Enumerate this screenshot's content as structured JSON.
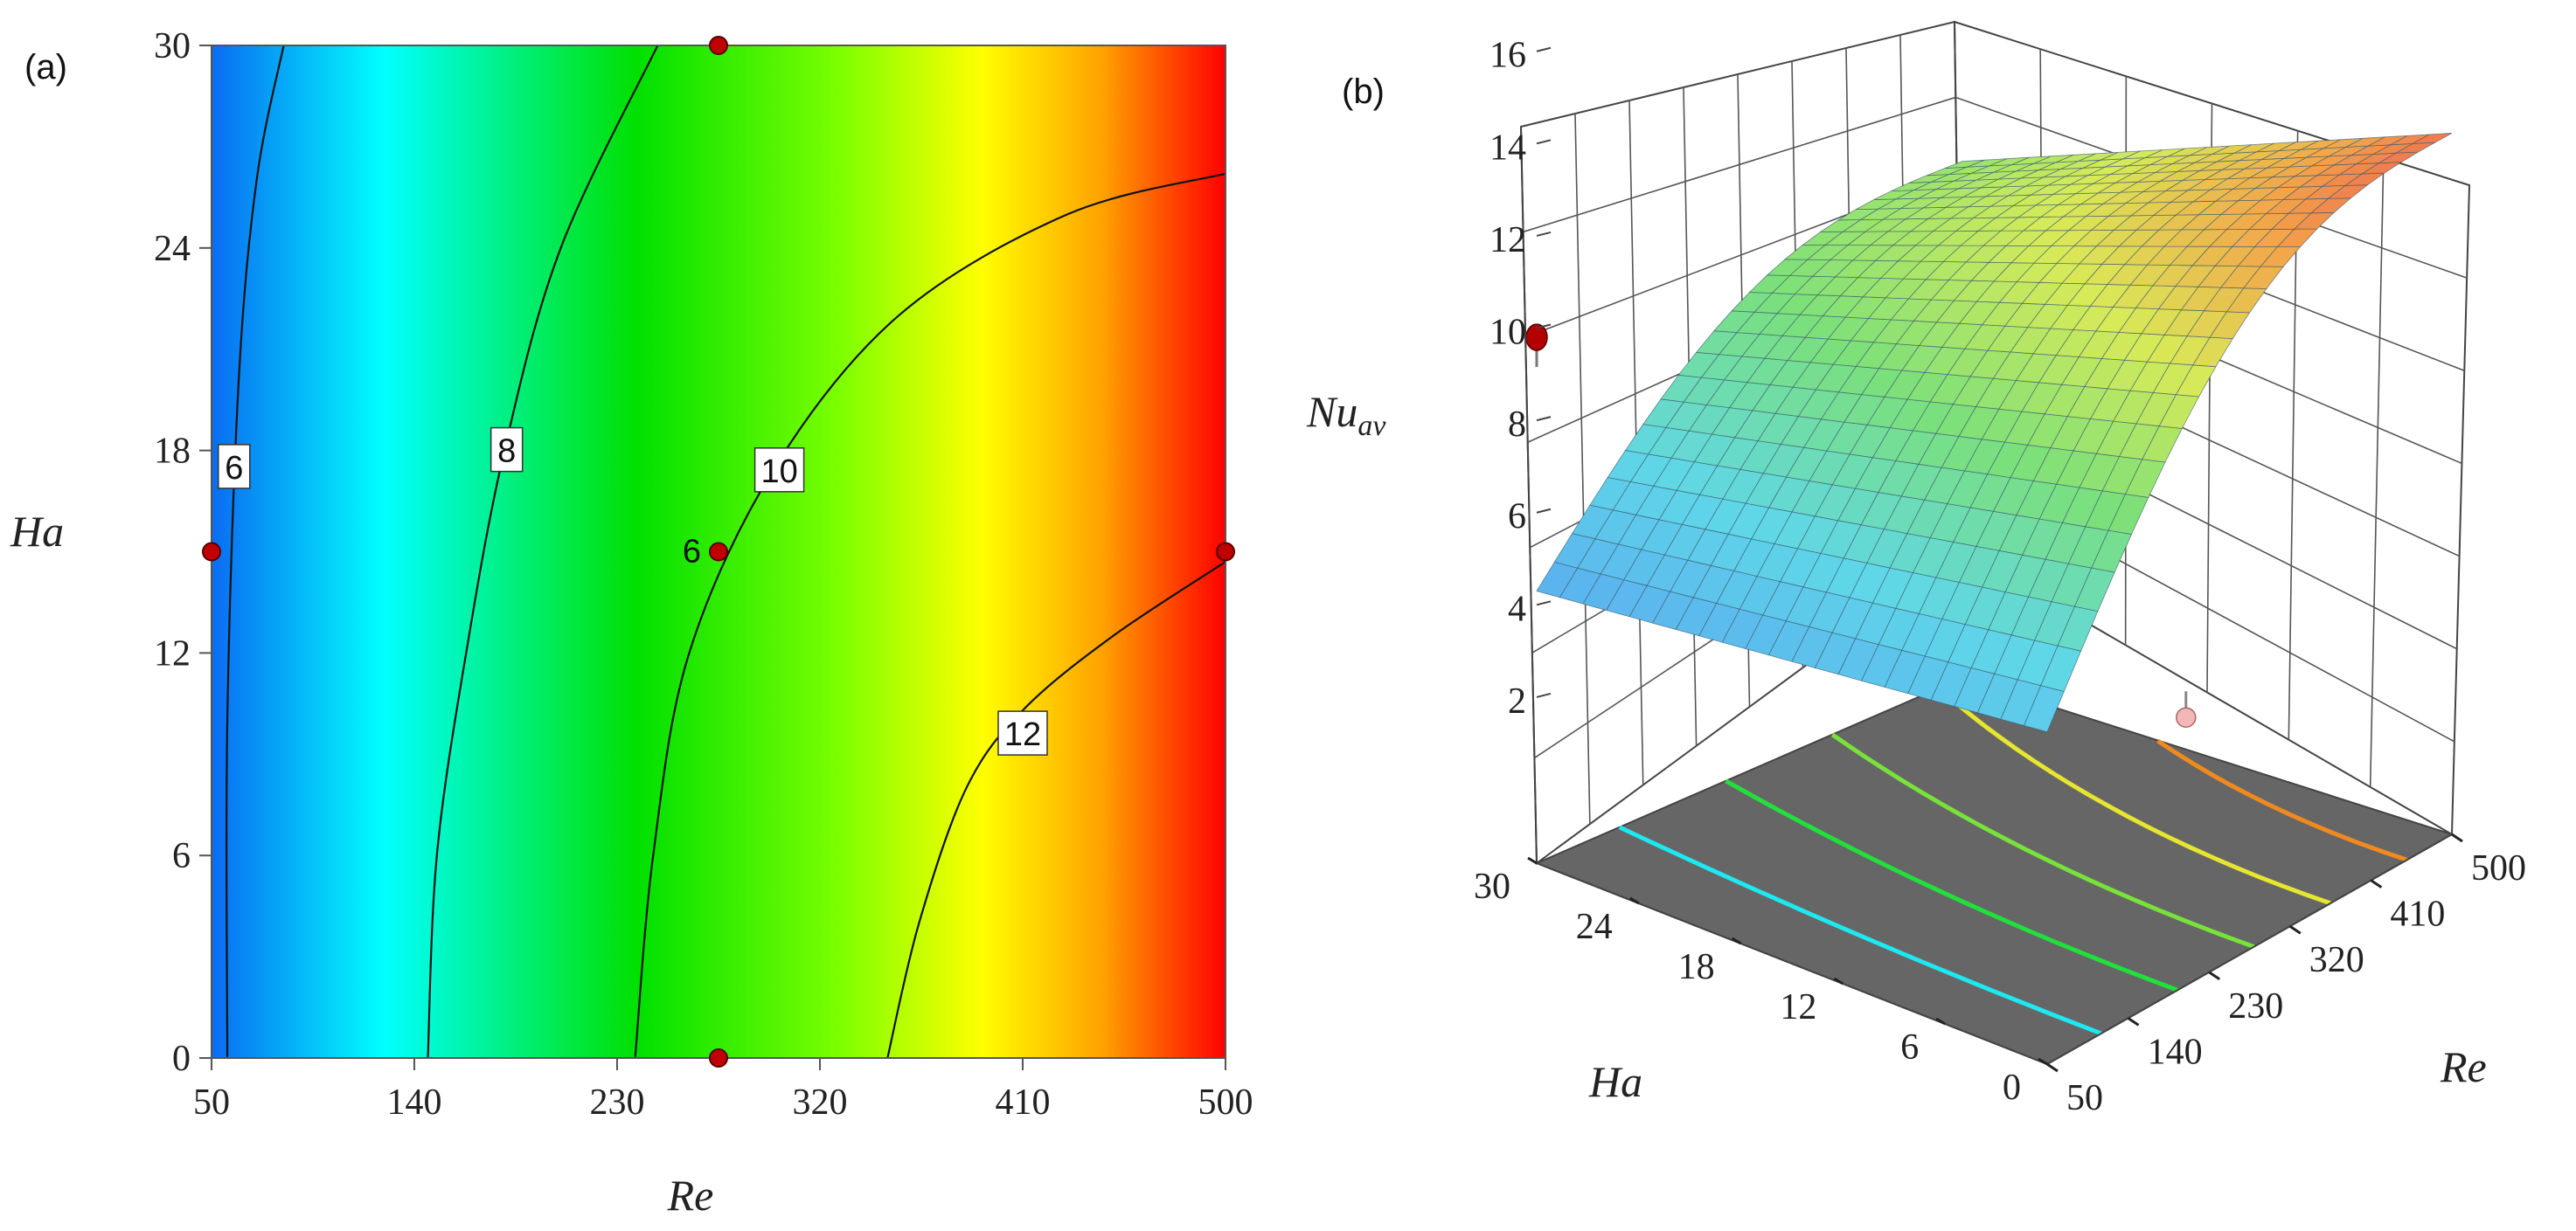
{
  "panels": {
    "a": {
      "label": "(a)"
    },
    "b": {
      "label": "(b)"
    }
  },
  "chart_data": [
    {
      "type": "heatmap",
      "subtype": "contour",
      "xlabel": "Re",
      "ylabel": "Ha",
      "xlim": [
        50,
        500
      ],
      "ylim": [
        0,
        30
      ],
      "xticks": [
        "50",
        "140",
        "230",
        "320",
        "410",
        "500"
      ],
      "yticks": [
        "0",
        "6",
        "12",
        "18",
        "24",
        "30"
      ],
      "colormap": [
        "#0a6cf2",
        "#00ffff",
        "#00e000",
        "#7cff00",
        "#ffff00",
        "#ffa000",
        "#ff0000"
      ],
      "contours": [
        {
          "level": 6,
          "label": "6",
          "points": [
            [
              57,
              0
            ],
            [
              57,
              10
            ],
            [
              62,
              20
            ],
            [
              70,
              26
            ],
            [
              82,
              30
            ]
          ],
          "label_at": [
            60,
            17.5
          ]
        },
        {
          "level": 8,
          "label": "8",
          "points": [
            [
              146,
              0
            ],
            [
              150,
              6
            ],
            [
              163,
              12
            ],
            [
              180,
              18
            ],
            [
              205,
              24
            ],
            [
              248,
              30
            ]
          ],
          "label_at": [
            181,
            18
          ]
        },
        {
          "level": 10,
          "label": "10",
          "points": [
            [
              238,
              0
            ],
            [
              246,
              6
            ],
            [
              262,
              12
            ],
            [
              300,
              17.5
            ],
            [
              355,
              22
            ],
            [
              430,
              25
            ],
            [
              500,
              26.2
            ]
          ],
          "label_at": [
            302,
            17.4
          ]
        },
        {
          "level": 12,
          "label": "12",
          "points": [
            [
              350,
              0
            ],
            [
              364,
              4
            ],
            [
              385,
              8
            ],
            [
              410,
              10.3
            ],
            [
              450,
              12.5
            ],
            [
              500,
              14.7
            ]
          ],
          "label_at": [
            410,
            9.6
          ]
        }
      ],
      "design_points": [
        {
          "re": 50,
          "ha": 15
        },
        {
          "re": 275,
          "ha": 30
        },
        {
          "re": 275,
          "ha": 15,
          "label": "6"
        },
        {
          "re": 500,
          "ha": 15
        },
        {
          "re": 275,
          "ha": 0
        }
      ]
    },
    {
      "type": "surface3d",
      "zlabel": "Nu",
      "zlabel_sub": "av",
      "xlabel": "Re",
      "ylabel": "Ha",
      "xticks": [
        "50",
        "140",
        "230",
        "320",
        "410",
        "500"
      ],
      "yticks": [
        "0",
        "6",
        "12",
        "18",
        "24",
        "30"
      ],
      "zticks": [
        "2",
        "4",
        "6",
        "8",
        "10",
        "12",
        "14",
        "16"
      ],
      "xlim": [
        50,
        500
      ],
      "ylim": [
        0,
        30
      ],
      "zlim": [
        0,
        16
      ],
      "surface_corners": [
        {
          "re": 50,
          "ha": 0,
          "nu": 5.6
        },
        {
          "re": 50,
          "ha": 30,
          "nu": 4.3
        },
        {
          "re": 500,
          "ha": 0,
          "nu": 13.6
        },
        {
          "re": 500,
          "ha": 30,
          "nu": 9.6
        }
      ],
      "floor_contours": [
        {
          "color": "#1ee8f0"
        },
        {
          "color": "#21e03c"
        },
        {
          "color": "#78e23a"
        },
        {
          "color": "#e6e630"
        },
        {
          "color": "#f08a1e"
        }
      ],
      "design_points": [
        {
          "position": "above",
          "color": "#b30000"
        },
        {
          "position": "above",
          "color": "#b30000"
        },
        {
          "position": "below",
          "color": "#f2b8b8"
        },
        {
          "position": "below",
          "color": "#f2b8b8"
        }
      ]
    }
  ]
}
